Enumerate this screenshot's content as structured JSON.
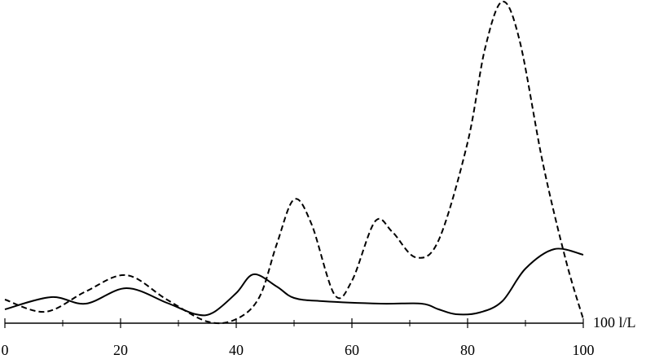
{
  "chart_data": {
    "type": "line",
    "xlabel": "100 l/L",
    "xlim": [
      0,
      100
    ],
    "xticks": [
      0,
      20,
      40,
      60,
      80,
      100
    ],
    "xminorticks": [
      10,
      30,
      50,
      70,
      90
    ],
    "ylim": [
      0,
      99.25
    ],
    "series": [
      {
        "color": "#000000",
        "style": "solid",
        "x": [
          0,
          8,
          14,
          21,
          28,
          33,
          36,
          40,
          43,
          47,
          50,
          55,
          65,
          72,
          75,
          78,
          82,
          86,
          90,
          95,
          100
        ],
        "values": [
          4.25,
          8,
          6,
          10.75,
          6.25,
          2.75,
          3.25,
          9.25,
          15,
          11.25,
          7.75,
          6.75,
          6,
          6,
          4.25,
          2.75,
          3.25,
          6.75,
          16.75,
          22.75,
          21
        ]
      },
      {
        "color": "#000000",
        "style": "dashed",
        "x": [
          0,
          7,
          14,
          21,
          28,
          35,
          40,
          44,
          47,
          50,
          53,
          57,
          60,
          64,
          67,
          71,
          75,
          80,
          83,
          86,
          89,
          93,
          97,
          100
        ],
        "values": [
          7.25,
          3.5,
          9.75,
          14.75,
          7.25,
          0.5,
          1.25,
          8,
          24.25,
          38,
          30.5,
          8.75,
          13,
          31.25,
          28,
          20.25,
          25.5,
          55.5,
          84.25,
          98.75,
          86.75,
          49.25,
          19.25,
          1.25
        ]
      }
    ]
  }
}
